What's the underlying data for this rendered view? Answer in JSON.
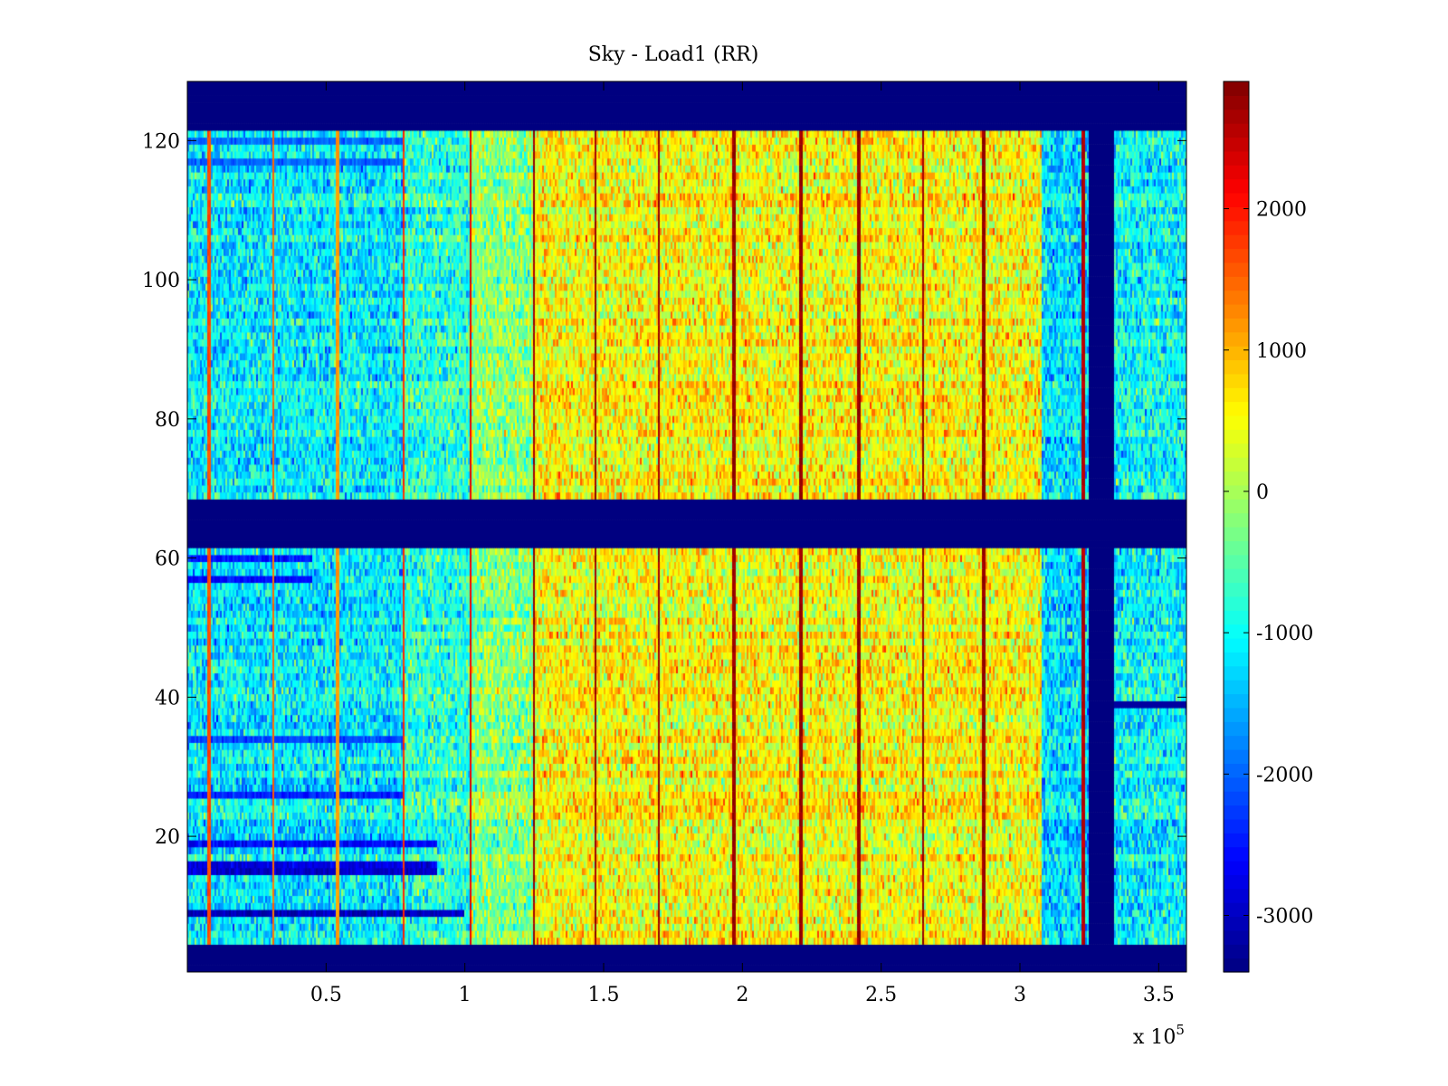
{
  "chart_data": {
    "type": "heatmap",
    "title": "Sky - Load1 (RR)",
    "xlabel": "",
    "ylabel": "",
    "x_exponent_label": "x 10",
    "x_exponent_power": "5",
    "xlim": [
      0,
      3.6
    ],
    "ylim": [
      1,
      128
    ],
    "x_ticks": [
      0.5,
      1,
      1.5,
      2,
      2.5,
      3,
      3.5
    ],
    "x_tick_labels": [
      "0.5",
      "1",
      "1.5",
      "2",
      "2.5",
      "3",
      "3.5"
    ],
    "y_ticks": [
      20,
      40,
      60,
      80,
      100,
      120
    ],
    "y_tick_labels": [
      "20",
      "40",
      "60",
      "80",
      "100",
      "120"
    ],
    "colorbar": {
      "colormap": "jet",
      "range": [
        -3400,
        2900
      ],
      "ticks": [
        2000,
        1000,
        0,
        -1000,
        -2000,
        -3000
      ],
      "tick_labels": [
        "2000",
        "1000",
        "0",
        "-1000",
        "-2000",
        "-3000"
      ]
    },
    "masked_value": -3400,
    "masked_rows": [
      [
        1,
        4
      ],
      [
        62,
        68
      ],
      [
        122,
        128
      ]
    ],
    "masked_cols": [
      [
        3.25,
        3.34
      ]
    ],
    "row_bands": [
      [
        5,
        61
      ],
      [
        69,
        121
      ]
    ],
    "regions": [
      {
        "x_start": 0,
        "x_end": 0.78,
        "mean": -1100
      },
      {
        "x_start": 0.78,
        "x_end": 1.02,
        "mean": -750
      },
      {
        "x_start": 1.02,
        "x_end": 1.25,
        "mean": -150
      },
      {
        "x_start": 1.25,
        "x_end": 3.08,
        "mean": 550
      },
      {
        "x_start": 3.08,
        "x_end": 3.25,
        "mean": -1200
      },
      {
        "x_start": 3.34,
        "x_end": 3.6,
        "mean": -1000
      }
    ],
    "vertical_lines": [
      {
        "x": 0.08,
        "value": 1800
      },
      {
        "x": 0.31,
        "value": 1600
      },
      {
        "x": 0.54,
        "value": 1300
      },
      {
        "x": 0.78,
        "value": 2000
      },
      {
        "x": 1.02,
        "value": 2400
      },
      {
        "x": 1.25,
        "value": 2900
      },
      {
        "x": 1.47,
        "value": 2900
      },
      {
        "x": 1.7,
        "value": 2900
      },
      {
        "x": 1.97,
        "value": 2900
      },
      {
        "x": 2.21,
        "value": 2900
      },
      {
        "x": 2.42,
        "value": 2900
      },
      {
        "x": 2.65,
        "value": 2900
      },
      {
        "x": 2.87,
        "value": 2900
      },
      {
        "x": 3.23,
        "value": 2700
      }
    ],
    "low_rows_left": [
      {
        "row": 9,
        "value": -3000,
        "x_end": 1.0
      },
      {
        "row": 15,
        "value": -2900,
        "x_end": 0.9
      },
      {
        "row": 16,
        "value": -2800,
        "x_end": 0.9
      },
      {
        "row": 19,
        "value": -2600,
        "x_end": 0.9
      },
      {
        "row": 26,
        "value": -2400,
        "x_end": 0.78
      },
      {
        "row": 34,
        "value": -2200,
        "x_end": 0.78
      },
      {
        "row": 57,
        "value": -2600,
        "x_end": 0.45
      },
      {
        "row": 60,
        "value": -2500,
        "x_end": 0.45
      },
      {
        "row": 117,
        "value": -2000,
        "x_end": 0.78
      },
      {
        "row": 120,
        "value": -2000,
        "x_end": 0.78
      }
    ],
    "right_block_special_rows": [
      {
        "row": 39,
        "value": -3200
      }
    ]
  }
}
